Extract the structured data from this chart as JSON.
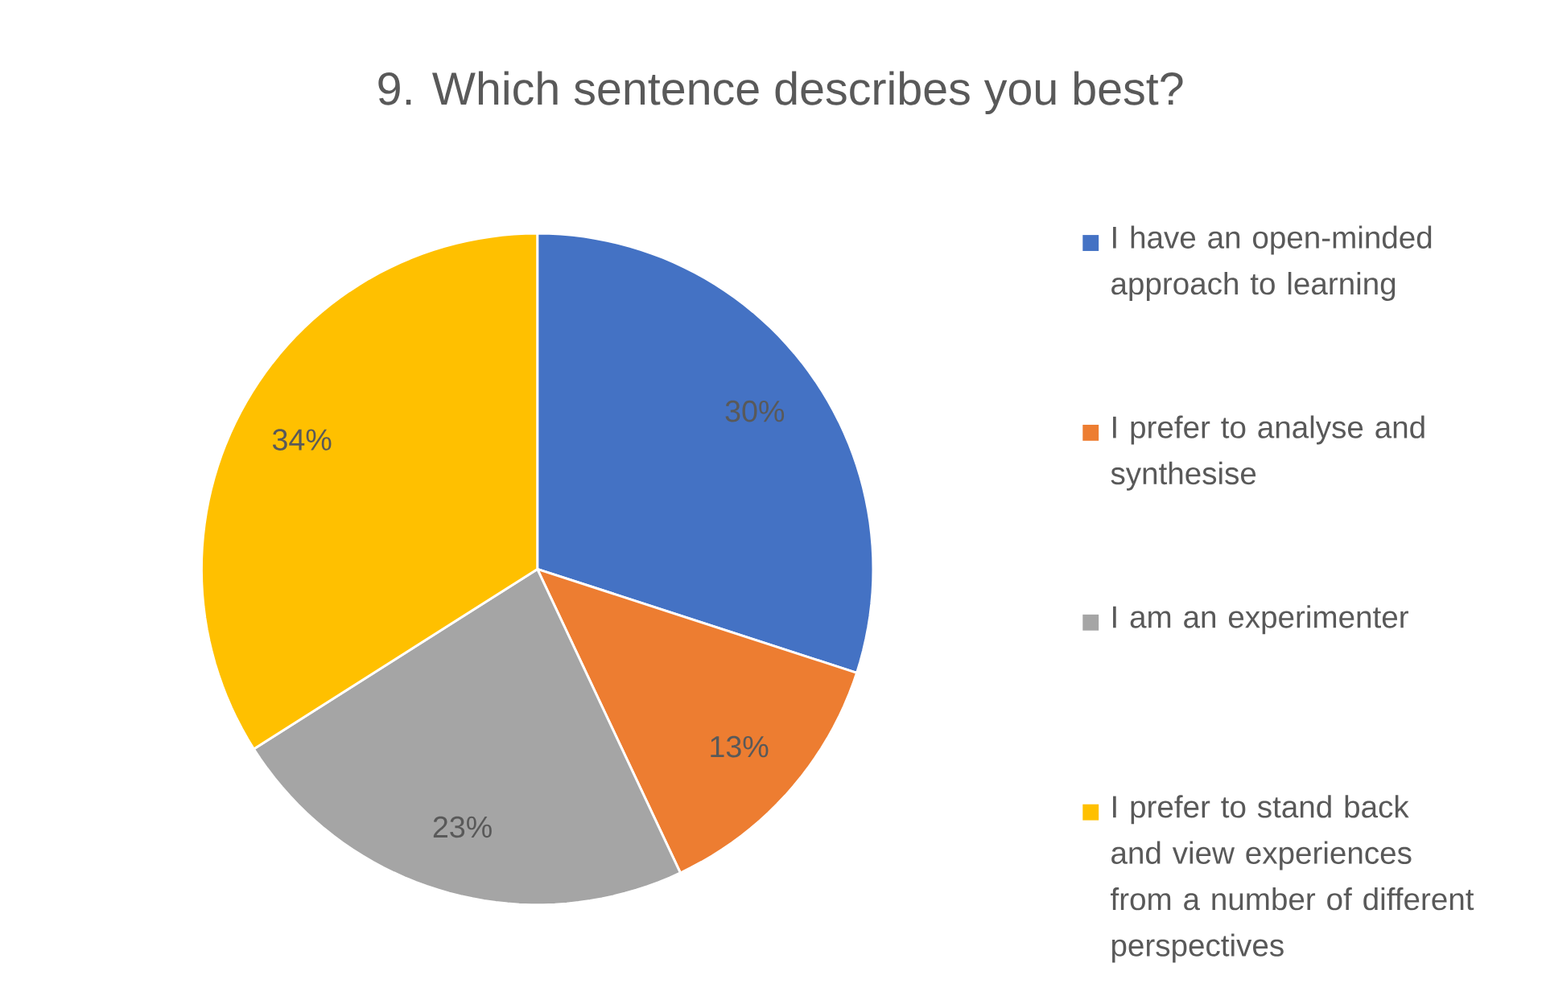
{
  "chart_data": {
    "type": "pie",
    "title": "9. Which sentence describes you best?",
    "categories": [
      "I have an open-minded approach to learning",
      "I prefer to analyse and synthesise",
      "I am an experimenter",
      "I prefer to stand back and view experiences from a number of different perspectives"
    ],
    "values": [
      30,
      13,
      23,
      34
    ],
    "colors": [
      "#4472c4",
      "#ed7d31",
      "#a5a5a5",
      "#ffc000"
    ],
    "value_labels": [
      "30%",
      "13%",
      "23%",
      "34%"
    ],
    "legend": "right"
  }
}
